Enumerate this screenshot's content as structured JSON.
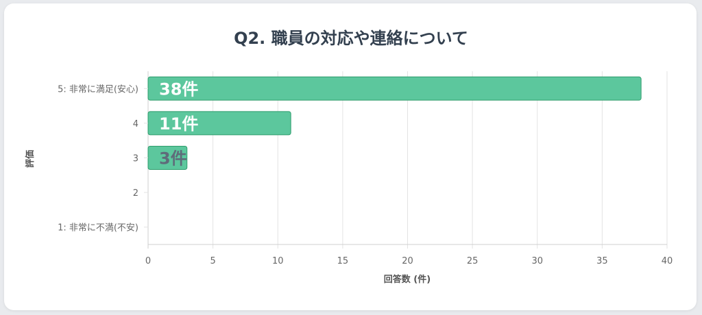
{
  "chart_data": {
    "type": "bar",
    "orientation": "horizontal",
    "title": "Q2. 職員の対応や連絡について",
    "xlabel": "回答数 (件)",
    "ylabel": "評価",
    "categories": [
      "5: 非常に満足(安心)",
      "4",
      "3",
      "2",
      "1: 非常に不満(不安)"
    ],
    "values": [
      38,
      11,
      3,
      0,
      0
    ],
    "data_labels": [
      "38件",
      "11件",
      "3件",
      "",
      ""
    ],
    "xlim": [
      0,
      40
    ],
    "x_ticks": [
      "0",
      "5",
      "10",
      "15",
      "20",
      "25",
      "30",
      "35",
      "40"
    ],
    "grid": true,
    "legend": "none",
    "colors": {
      "bar_fill": "#5cc79d",
      "bar_stroke": "#2e9c6c",
      "label_light": "#ffffff",
      "label_dark": "#5f6b7a",
      "grid": "#e3e3e3",
      "axis": "#cfcfcf"
    }
  }
}
